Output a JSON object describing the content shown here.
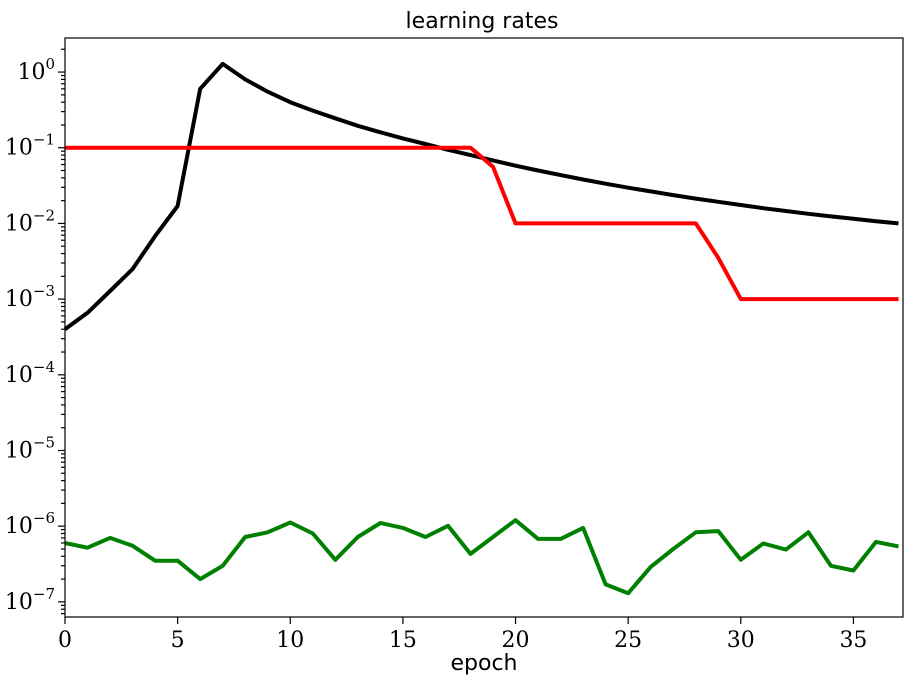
{
  "chart_data": {
    "type": "line",
    "title": "learning rates",
    "xlabel": "epoch",
    "ylabel": "",
    "yscale": "log",
    "xlim": [
      0,
      37.2
    ],
    "ylim_log10": [
      -7.2,
      0.45
    ],
    "grid": false,
    "legend": "none",
    "x_ticks": [
      0,
      5,
      10,
      15,
      20,
      25,
      30,
      35
    ],
    "x_tick_labels": [
      "0",
      "5",
      "10",
      "15",
      "20",
      "25",
      "30",
      "35"
    ],
    "y_ticks_log10": [
      0,
      -1,
      -2,
      -3,
      -4,
      -5,
      -6,
      -7
    ],
    "y_tick_labels": [
      {
        "base": "10",
        "exp": "0"
      },
      {
        "base": "10",
        "exp": "−1"
      },
      {
        "base": "10",
        "exp": "−2"
      },
      {
        "base": "10",
        "exp": "−3"
      },
      {
        "base": "10",
        "exp": "−4"
      },
      {
        "base": "10",
        "exp": "−5"
      },
      {
        "base": "10",
        "exp": "−6"
      },
      {
        "base": "10",
        "exp": "−7"
      }
    ],
    "series": [
      {
        "color": "#000000",
        "x": [
          0,
          1,
          2,
          3,
          4,
          5,
          6,
          7,
          8,
          9,
          10,
          11,
          12,
          13,
          14,
          15,
          16,
          17,
          18,
          19,
          20,
          21,
          22,
          23,
          24,
          25,
          26,
          27,
          28,
          29,
          30,
          31,
          32,
          33,
          34,
          35,
          36,
          37
        ],
        "y": [
          0.0004,
          0.00066,
          0.00128,
          0.0025,
          0.0068,
          0.017,
          0.6,
          1.28,
          0.8,
          0.55,
          0.4,
          0.31,
          0.245,
          0.195,
          0.16,
          0.133,
          0.112,
          0.094,
          0.08,
          0.068,
          0.058,
          0.05,
          0.0435,
          0.038,
          0.0335,
          0.0297,
          0.0265,
          0.0237,
          0.0213,
          0.0193,
          0.0175,
          0.0159,
          0.0146,
          0.0134,
          0.0124,
          0.0115,
          0.0107,
          0.01
        ]
      },
      {
        "color": "#ff0000",
        "x": [
          0,
          1,
          2,
          3,
          4,
          5,
          6,
          7,
          8,
          9,
          10,
          11,
          12,
          13,
          14,
          15,
          16,
          17,
          18,
          19,
          20,
          21,
          22,
          23,
          24,
          25,
          26,
          27,
          28,
          29,
          30,
          31,
          32,
          33,
          34,
          35,
          36,
          37
        ],
        "y": [
          0.1,
          0.1,
          0.1,
          0.1,
          0.1,
          0.1,
          0.1,
          0.1,
          0.1,
          0.1,
          0.1,
          0.1,
          0.1,
          0.1,
          0.1,
          0.1,
          0.1,
          0.1,
          0.1,
          0.056,
          0.01,
          0.01,
          0.01,
          0.01,
          0.01,
          0.01,
          0.01,
          0.01,
          0.01,
          0.0035,
          0.001,
          0.001,
          0.001,
          0.001,
          0.001,
          0.001,
          0.001,
          0.001
        ]
      },
      {
        "color": "#008000",
        "x": [
          0,
          1,
          2,
          3,
          4,
          5,
          6,
          7,
          8,
          9,
          10,
          11,
          12,
          13,
          14,
          15,
          16,
          17,
          18,
          19,
          20,
          21,
          22,
          23,
          24,
          25,
          26,
          27,
          28,
          29,
          30,
          31,
          32,
          33,
          34,
          35,
          36,
          37
        ],
        "y": [
          6e-07,
          5.2e-07,
          7e-07,
          5.5e-07,
          3.5e-07,
          3.5e-07,
          2e-07,
          3e-07,
          7.2e-07,
          8.3e-07,
          1.12e-06,
          8e-07,
          3.6e-07,
          7.2e-07,
          1.1e-06,
          9.5e-07,
          7.2e-07,
          1.01e-06,
          4.3e-07,
          7.2e-07,
          1.2e-06,
          6.8e-07,
          6.8e-07,
          9.5e-07,
          1.7e-07,
          1.3e-07,
          2.9e-07,
          5e-07,
          8.3e-07,
          8.6e-07,
          3.6e-07,
          5.9e-07,
          4.9e-07,
          8.3e-07,
          3e-07,
          2.6e-07,
          6.2e-07,
          5.4e-07
        ]
      }
    ]
  }
}
